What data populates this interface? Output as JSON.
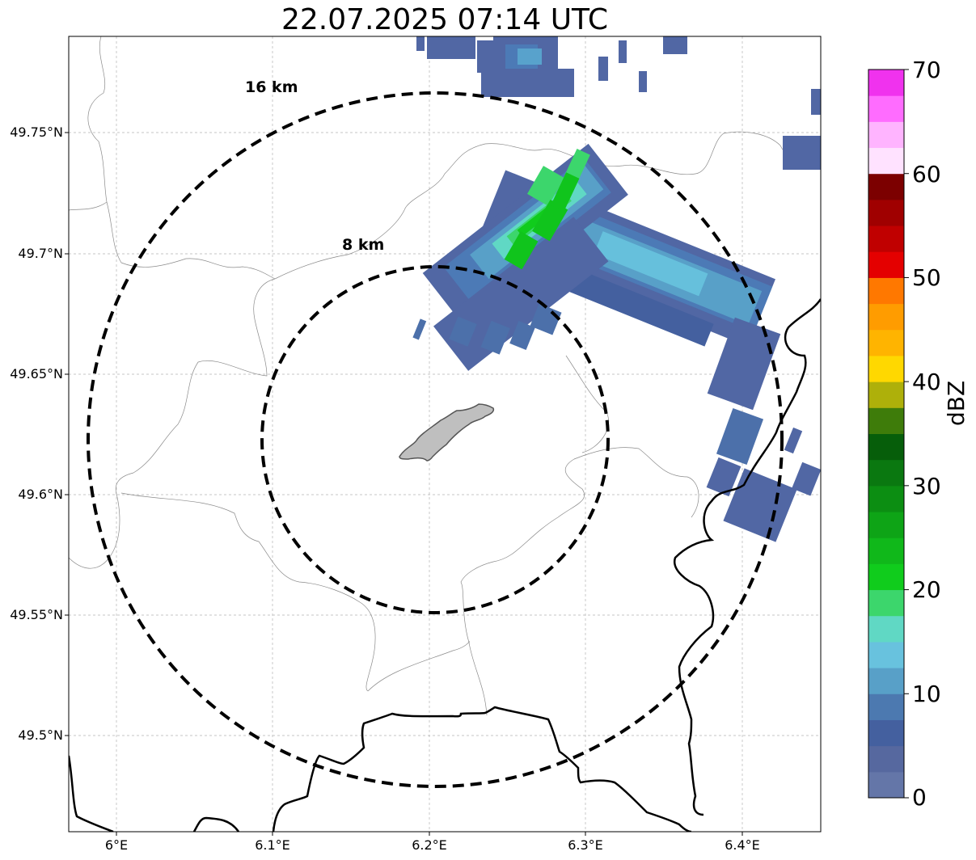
{
  "title": "22.07.2025 07:14 UTC",
  "map": {
    "lon_range": [
      5.97,
      6.45
    ],
    "lat_range": [
      49.46,
      49.79
    ],
    "lat_ticks": [
      {
        "value": 49.5,
        "label": "49.5°N"
      },
      {
        "value": 49.55,
        "label": "49.55°N"
      },
      {
        "value": 49.6,
        "label": "49.6°N"
      },
      {
        "value": 49.65,
        "label": "49.65°N"
      },
      {
        "value": 49.7,
        "label": "49.7°N"
      },
      {
        "value": 49.75,
        "label": "49.75°N"
      }
    ],
    "lon_ticks": [
      {
        "value": 6.0,
        "label": "6°E"
      },
      {
        "value": 6.1,
        "label": "6.1°E"
      },
      {
        "value": 6.2,
        "label": "6.2°E"
      },
      {
        "value": 6.3,
        "label": "6.3°E"
      },
      {
        "value": 6.4,
        "label": "6.4°E"
      }
    ],
    "range_rings": [
      {
        "radius_km": 8,
        "label": "8 km"
      },
      {
        "radius_km": 16,
        "label": "16 km"
      }
    ],
    "grid": true
  },
  "colorbar": {
    "label": "dBZ",
    "min": 0,
    "max": 70,
    "ticks": [
      "0",
      "10",
      "20",
      "30",
      "40",
      "50",
      "60",
      "70"
    ],
    "colors": [
      "#6476a8",
      "#56689f",
      "#44609f",
      "#4c79b0",
      "#58a0c8",
      "#68c2de",
      "#60d8c4",
      "#3cd66c",
      "#10cc1c",
      "#10b81a",
      "#0ea416",
      "#0c8e12",
      "#0a7810",
      "#065e0a",
      "#3e7c0a",
      "#aeb00a",
      "#ffd800",
      "#ffb400",
      "#ff9c00",
      "#ff7800",
      "#e40000",
      "#c00000",
      "#a00000",
      "#7c0000",
      "#ffe2ff",
      "#ffb4ff",
      "#ff6cff",
      "#f032ee"
    ]
  }
}
